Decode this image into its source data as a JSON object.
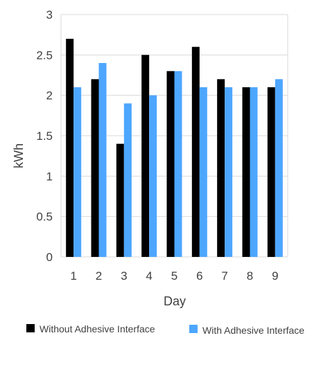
{
  "chart_data": {
    "type": "bar",
    "title": "",
    "xlabel": "Day",
    "ylabel": "kWh",
    "categories": [
      "1",
      "2",
      "3",
      "4",
      "5",
      "6",
      "7",
      "8",
      "9"
    ],
    "series": [
      {
        "name": "Without Adhesive Interface",
        "color": "#000000",
        "values": [
          2.7,
          2.2,
          1.4,
          2.5,
          2.3,
          2.6,
          2.2,
          2.1,
          2.1
        ]
      },
      {
        "name": "With Adhesive Interface",
        "color": "#4da6ff",
        "values": [
          2.1,
          2.4,
          1.9,
          2.0,
          2.3,
          2.1,
          2.1,
          2.1,
          2.2
        ]
      }
    ],
    "ylim": [
      0,
      3
    ],
    "yticks": [
      "0",
      "0.5",
      "1",
      "1.5",
      "2",
      "2.5",
      "3"
    ],
    "grid": true,
    "legend_position": "bottom"
  }
}
